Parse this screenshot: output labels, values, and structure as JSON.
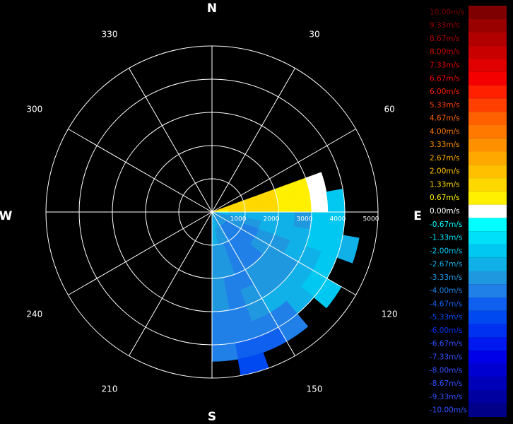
{
  "radar": {
    "compass": [
      "N",
      "E",
      "S",
      "W"
    ],
    "bearings": [
      30,
      60,
      120,
      150,
      210,
      240,
      300,
      330
    ],
    "ranges": [
      1000,
      2000,
      3000,
      4000,
      5000
    ],
    "sectors": [
      {
        "azimuth": 75,
        "values": [
          1.33,
          1.33,
          1.33,
          1.33,
          0.67,
          0.67,
          0,
          null,
          null,
          null
        ]
      },
      {
        "azimuth": 85,
        "values": [
          0.67,
          1.33,
          1.33,
          1.33,
          0.67,
          0.67,
          0,
          -2,
          null,
          null
        ]
      },
      {
        "azimuth": 95,
        "values": [
          -2,
          -2.67,
          -2.67,
          -2.67,
          -2.67,
          -3.33,
          -2,
          -2,
          null,
          null
        ]
      },
      {
        "azimuth": 105,
        "values": [
          -3.33,
          -3.33,
          -3.33,
          -2.67,
          -2.67,
          -2.67,
          -2,
          -2,
          -2.67,
          null
        ]
      },
      {
        "azimuth": 115,
        "values": [
          -3.33,
          -3.33,
          -4,
          -3.33,
          -3.33,
          -2.67,
          -2.67,
          -2,
          null,
          null
        ]
      },
      {
        "azimuth": 125,
        "values": [
          -3.33,
          -4,
          -4,
          -3.33,
          -3.33,
          -3.33,
          -2.67,
          -2,
          -2,
          null
        ]
      },
      {
        "azimuth": 135,
        "values": [
          -3.33,
          -4,
          -4,
          -4,
          -3.33,
          -3.33,
          -2.67,
          -2.67,
          null,
          null
        ]
      },
      {
        "azimuth": 145,
        "values": [
          -3.33,
          -4,
          -4,
          -4,
          -3.33,
          -3.33,
          -2.67,
          -4,
          -4,
          null
        ]
      },
      {
        "azimuth": 155,
        "values": [
          -3.33,
          -3.33,
          -4,
          -4,
          -4,
          -3.33,
          -3.33,
          -4,
          -4.67,
          null
        ]
      },
      {
        "azimuth": 165,
        "values": [
          -2.67,
          -3.33,
          -3.33,
          -3.33,
          -4,
          -4,
          -4,
          -4,
          -4.67,
          -5.33
        ]
      },
      {
        "azimuth": 175,
        "values": [
          -2.67,
          -2.67,
          -3.33,
          -3.33,
          -3.33,
          -3.33,
          -4,
          -4,
          -4,
          null
        ]
      }
    ],
    "legend": [
      {
        "value": 10,
        "label": "10.00m/s",
        "color": "#7f0000"
      },
      {
        "value": 9.33,
        "label": "9.33m/s",
        "color": "#990000"
      },
      {
        "value": 8.67,
        "label": "8.67m/s",
        "color": "#b20000"
      },
      {
        "value": 8,
        "label": "8.00m/s",
        "color": "#c80000"
      },
      {
        "value": 7.33,
        "label": "7.33m/s",
        "color": "#e00000"
      },
      {
        "value": 6.67,
        "label": "6.67m/s",
        "color": "#f50000"
      },
      {
        "value": 6,
        "label": "6.00m/s",
        "color": "#ff2000"
      },
      {
        "value": 5.33,
        "label": "5.33m/s",
        "color": "#ff4000"
      },
      {
        "value": 4.67,
        "label": "4.67m/s",
        "color": "#ff6000"
      },
      {
        "value": 4,
        "label": "4.00m/s",
        "color": "#ff7800"
      },
      {
        "value": 3.33,
        "label": "3.33m/s",
        "color": "#ff9000"
      },
      {
        "value": 2.67,
        "label": "2.67m/s",
        "color": "#ffa800"
      },
      {
        "value": 2,
        "label": "2.00m/s",
        "color": "#ffc000"
      },
      {
        "value": 1.33,
        "label": "1.33m/s",
        "color": "#ffd800"
      },
      {
        "value": 0.67,
        "label": "0.67m/s",
        "color": "#fff000"
      },
      {
        "value": 0,
        "label": "0.00m/s",
        "color": "#ffffff"
      },
      {
        "value": -0.67,
        "label": "-0.67m/s",
        "color": "#00ffff"
      },
      {
        "value": -1.33,
        "label": "-1.33m/s",
        "color": "#00e0f8"
      },
      {
        "value": -2,
        "label": "-2.00m/s",
        "color": "#00c8f0"
      },
      {
        "value": -2.67,
        "label": "-2.67m/s",
        "color": "#10b0e8"
      },
      {
        "value": -3.33,
        "label": "-3.33m/s",
        "color": "#2098e0"
      },
      {
        "value": -4,
        "label": "-4.00m/s",
        "color": "#2080e8"
      },
      {
        "value": -4.67,
        "label": "-4.67m/s",
        "color": "#1060f0"
      },
      {
        "value": -5.33,
        "label": "-5.33m/s",
        "color": "#0048f0"
      },
      {
        "value": -6,
        "label": "-6.00m/s",
        "color": "#0030f0"
      },
      {
        "value": -6.67,
        "label": "-6.67m/s",
        "color": "#0018f0"
      },
      {
        "value": -7.33,
        "label": "-7.33m/s",
        "color": "#0000e8"
      },
      {
        "value": -8,
        "label": "-8.00m/s",
        "color": "#0000d0"
      },
      {
        "value": -8.67,
        "label": "-8.67m/s",
        "color": "#0000b8"
      },
      {
        "value": -9.33,
        "label": "-9.33m/s",
        "color": "#0000a0"
      },
      {
        "value": -10,
        "label": "-10.00m/s",
        "color": "#000088"
      }
    ]
  }
}
